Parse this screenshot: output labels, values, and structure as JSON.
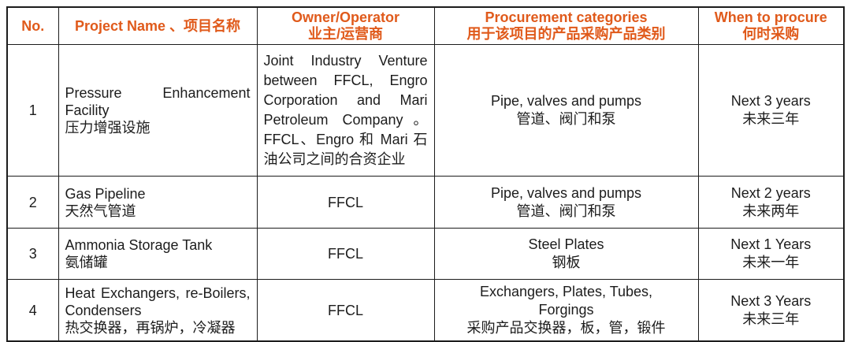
{
  "table": {
    "accent_color": "#E05A1B",
    "border_color": "#1C1C1C",
    "columns": [
      {
        "label": "No."
      },
      {
        "label": "Project Name 、项目名称"
      },
      {
        "label": "Owner/Operator",
        "label_zh": "业主/运营商"
      },
      {
        "label": "Procurement categories",
        "label_zh": "用于该项目的产品采购产品类别"
      },
      {
        "label": "When to procure",
        "label_zh": "何时采购"
      }
    ],
    "rows": [
      {
        "no": "1",
        "project_en": "Pressure Enhancement Facility",
        "project_zh": "压力增强设施",
        "owner_en": "Joint Industry Venture between FFCL, Engro Corporation and Mari Petroleum Company。",
        "owner_zh": "FFCL、Engro 和 Mari 石油公司之间的合资企业",
        "categories_en": "Pipe, valves and pumps",
        "categories_zh": "管道、阀门和泵",
        "when_en": "Next 3 years",
        "when_zh": "未来三年"
      },
      {
        "no": "2",
        "project_en": "Gas Pipeline",
        "project_zh": "天然气管道",
        "owner_en": "FFCL",
        "categories_en": "Pipe, valves and pumps",
        "categories_zh": "管道、阀门和泵",
        "when_en": "Next 2 years",
        "when_zh": "未来两年"
      },
      {
        "no": "3",
        "project_en": "Ammonia Storage Tank",
        "project_zh": "氨储罐",
        "owner_en": "FFCL",
        "categories_en": "Steel Plates",
        "categories_zh": "钢板",
        "when_en": "Next 1 Years",
        "when_zh": "未来一年"
      },
      {
        "no": "4",
        "project_en": "Heat Exchangers, re-Boilers, Condensers",
        "project_zh": "热交换器，再锅炉，冷凝器",
        "owner_en": "FFCL",
        "categories_en": "Exchangers, Plates, Tubes, Forgings",
        "categories_zh": "采购产品交换器，板，管，锻件",
        "when_en": "Next 3 Years",
        "when_zh": "未来三年"
      }
    ]
  }
}
